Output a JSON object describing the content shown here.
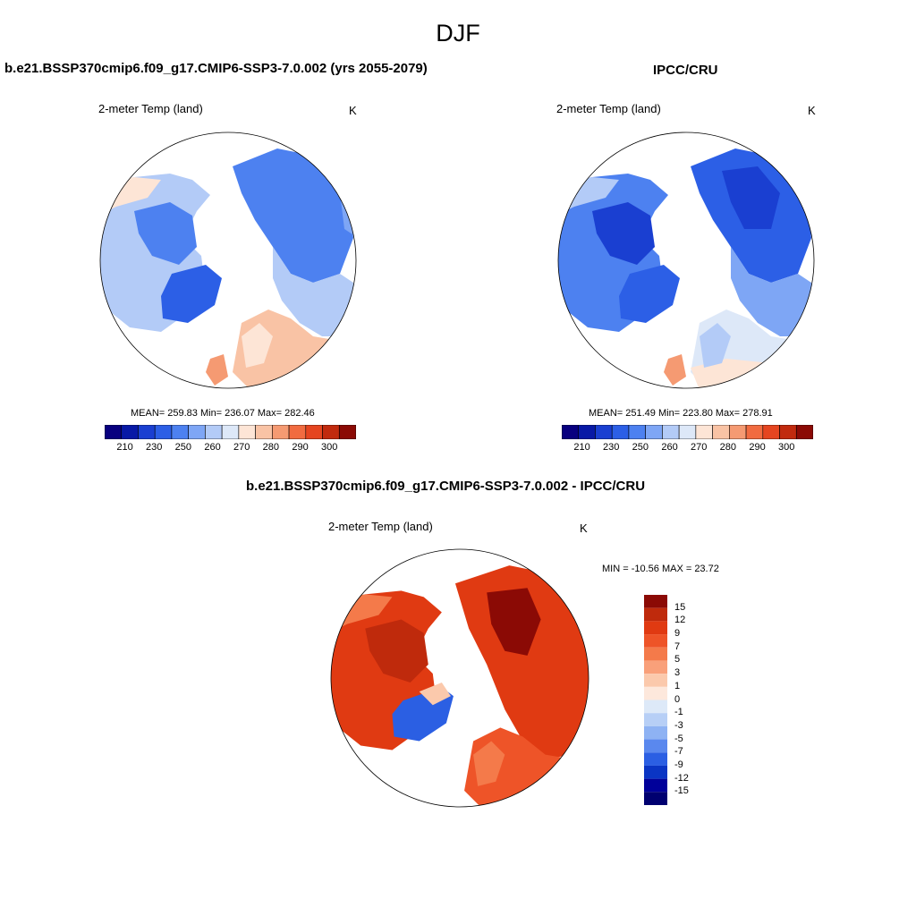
{
  "title": "DJF",
  "panels": [
    {
      "title": "b.e21.BSSP370cmip6.f09_g17.CMIP6-SSP3-7.0.002 (yrs 2055-2079)",
      "variable": "2-meter Temp (land)",
      "units": "K",
      "stats": "MEAN= 259.83  Min= 236.07  Max= 282.46",
      "colorbar_ticks": [
        "210",
        "230",
        "250",
        "260",
        "270",
        "280",
        "290",
        "300"
      ]
    },
    {
      "title": "IPCC/CRU",
      "variable": "2-meter Temp (land)",
      "units": "K",
      "stats": "MEAN= 251.49  Min= 223.80  Max= 278.91",
      "colorbar_ticks": [
        "210",
        "230",
        "250",
        "260",
        "270",
        "280",
        "290",
        "300"
      ]
    },
    {
      "title": "b.e21.BSSP370cmip6.f09_g17.CMIP6-SSP3-7.0.002 - IPCC/CRU",
      "variable": "2-meter Temp (land)",
      "units": "K",
      "stats": "MIN = -10.56  MAX =  23.72",
      "colorbar_ticks": [
        "15",
        "12",
        "9",
        "7",
        "5",
        "3",
        "1",
        "0",
        "-1",
        "-3",
        "-5",
        "-7",
        "-9",
        "-12",
        "-15"
      ]
    }
  ],
  "colors": {
    "temp_scale": [
      "#08007f",
      "#0819a6",
      "#1a3fd1",
      "#2c5fe6",
      "#4d81f0",
      "#7ea6f5",
      "#b3cbf7",
      "#dde8f8",
      "#fde5d6",
      "#f9c3a5",
      "#f59a72",
      "#f16b40",
      "#e54520",
      "#c12a0e",
      "#8b0a05"
    ],
    "diff_scale": [
      "#8b0a05",
      "#bf2a0c",
      "#e03a12",
      "#ee5428",
      "#f47a4a",
      "#f9a07a",
      "#fbc9ac",
      "#fde8dc",
      "#dde9f8",
      "#b7cff6",
      "#8eb2f3",
      "#5a88ee",
      "#2b5fe3",
      "#0a35c4",
      "#00009a",
      "#000070"
    ]
  }
}
